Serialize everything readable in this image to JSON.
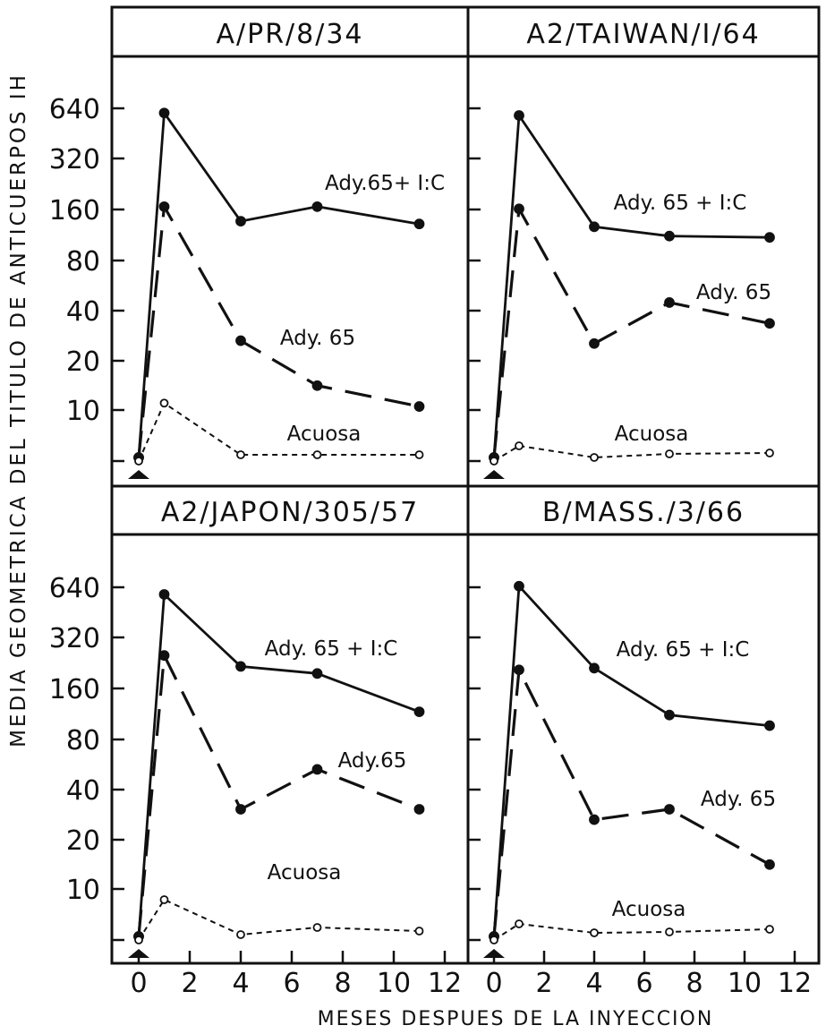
{
  "figure": {
    "ylabel": "MEDIA GEOMETRICA DEL TITULO DE ANTICUERPOS IH",
    "xlabel": "MESES DESPUES DE LA INYECCION"
  },
  "chart_data": [
    {
      "type": "line",
      "title": "A/PR/8/34",
      "x_ticks": [
        "0",
        "2",
        "4",
        "6",
        "8",
        "10",
        "12"
      ],
      "y_ticks": [
        "10",
        "20",
        "40",
        "80",
        "160",
        "320",
        "640"
      ],
      "y_scale": "log2",
      "xlim": [
        0,
        12
      ],
      "series": [
        {
          "name": "Ady.65+ I:C",
          "style": "solid",
          "marker": "filled",
          "x": [
            0,
            1,
            4,
            7,
            11
          ],
          "y": [
            5.2,
            600,
            135,
            165,
            130
          ]
        },
        {
          "name": "Ady. 65",
          "style": "dashed",
          "marker": "filled",
          "x": [
            0,
            1,
            4,
            7,
            11
          ],
          "y": [
            5.2,
            165,
            26,
            14,
            10.5
          ]
        },
        {
          "name": "Acuosa",
          "style": "dotted",
          "marker": "open",
          "x": [
            0,
            1,
            4,
            7,
            11
          ],
          "y": [
            4.8,
            11,
            5.5,
            5.5,
            5.5
          ]
        }
      ]
    },
    {
      "type": "line",
      "title": "A2/TAIWAN/I/64",
      "x_ticks": [
        "0",
        "2",
        "4",
        "6",
        "8",
        "10",
        "12"
      ],
      "y_ticks": [
        "10",
        "20",
        "40",
        "80",
        "160",
        "320",
        "640"
      ],
      "y_scale": "log2",
      "xlim": [
        0,
        12
      ],
      "series": [
        {
          "name": "Ady. 65 + I:C",
          "style": "solid",
          "marker": "filled",
          "x": [
            0,
            1,
            4,
            7,
            11
          ],
          "y": [
            5.2,
            580,
            125,
            110,
            108
          ]
        },
        {
          "name": "Ady. 65",
          "style": "dashed",
          "marker": "filled",
          "x": [
            0,
            1,
            4,
            7,
            11
          ],
          "y": [
            5.2,
            160,
            25,
            44,
            33
          ]
        },
        {
          "name": "Acuosa",
          "style": "dotted",
          "marker": "open",
          "x": [
            0,
            1,
            4,
            7,
            11
          ],
          "y": [
            4.8,
            6.5,
            5.2,
            5.6,
            5.7
          ]
        }
      ]
    },
    {
      "type": "line",
      "title": "A2/JAPON/305/57",
      "x_ticks": [
        "0",
        "2",
        "4",
        "6",
        "8",
        "10",
        "12"
      ],
      "y_ticks": [
        "10",
        "20",
        "40",
        "80",
        "160",
        "320",
        "640"
      ],
      "y_scale": "log2",
      "xlim": [
        0,
        12
      ],
      "series": [
        {
          "name": "Ady. 65 + I:C",
          "style": "solid",
          "marker": "filled",
          "x": [
            0,
            1,
            4,
            7,
            11
          ],
          "y": [
            5.2,
            580,
            215,
            195,
            115
          ]
        },
        {
          "name": "Ady.65",
          "style": "dashed",
          "marker": "filled",
          "x": [
            0,
            1,
            4,
            7,
            11
          ],
          "y": [
            5.2,
            250,
            30,
            52,
            30
          ]
        },
        {
          "name": "Acuosa",
          "style": "dotted",
          "marker": "open",
          "x": [
            0,
            1,
            4,
            7,
            11
          ],
          "y": [
            4.8,
            9.3,
            5.4,
            6.2,
            5.8
          ]
        }
      ]
    },
    {
      "type": "line",
      "title": "B/MASS./3/66",
      "x_ticks": [
        "0",
        "2",
        "4",
        "6",
        "8",
        "10",
        "12"
      ],
      "y_ticks": [
        "10",
        "20",
        "40",
        "80",
        "160",
        "320",
        "640"
      ],
      "y_scale": "log2",
      "xlim": [
        0,
        12
      ],
      "series": [
        {
          "name": "Ady. 65 + I:C",
          "style": "solid",
          "marker": "filled",
          "x": [
            0,
            1,
            4,
            7,
            11
          ],
          "y": [
            5.2,
            650,
            210,
            110,
            95
          ]
        },
        {
          "name": "Ady. 65",
          "style": "dashed",
          "marker": "filled",
          "x": [
            0,
            1,
            4,
            7,
            11
          ],
          "y": [
            5.2,
            205,
            26,
            30,
            14
          ]
        },
        {
          "name": "Acuosa",
          "style": "dotted",
          "marker": "open",
          "x": [
            0,
            1,
            4,
            7,
            11
          ],
          "y": [
            4.8,
            6.6,
            5.6,
            5.7,
            6.0
          ]
        }
      ]
    }
  ]
}
